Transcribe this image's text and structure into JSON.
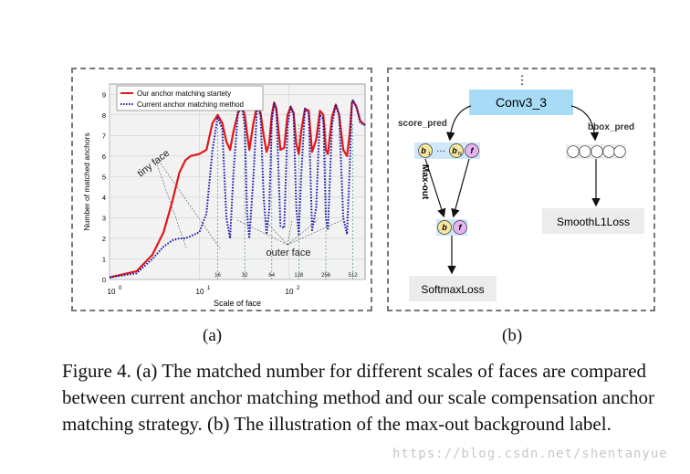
{
  "chart_data": {
    "type": "line",
    "xlabel": "Scale of face",
    "ylabel": "Number of matched anchors",
    "xscale": "log",
    "xlim": [
      1,
      700
    ],
    "ylim": [
      0,
      9.5
    ],
    "x_tick_labels": [
      "10",
      "10",
      "10"
    ],
    "x_tick_exponents": [
      "0",
      "1",
      "2"
    ],
    "y_ticks": [
      "0",
      "1",
      "2",
      "3",
      "4",
      "5",
      "6",
      "7",
      "8",
      "9"
    ],
    "anchor_scales": [
      "16",
      "32",
      "64",
      "128",
      "256",
      "512"
    ],
    "grid": true,
    "legend_position": "top",
    "annotations": [
      "tiny face",
      "outer face"
    ],
    "series": [
      {
        "name": "Our anchor matching startety",
        "color": "#e01818",
        "style": "solid",
        "x": [
          1,
          2,
          3,
          4,
          5,
          6,
          7,
          8,
          10,
          12,
          14,
          16,
          18,
          20,
          22,
          24,
          27,
          30,
          32,
          34,
          36,
          40,
          44,
          48,
          52,
          56,
          60,
          64,
          68,
          72,
          80,
          88,
          96,
          104,
          112,
          120,
          128,
          136,
          150,
          165,
          180,
          200,
          220,
          240,
          256,
          270,
          300,
          330,
          360,
          400,
          440,
          470,
          500,
          512,
          560,
          620,
          700
        ],
        "y": [
          0.1,
          0.4,
          1.2,
          2.3,
          3.8,
          5.2,
          5.8,
          6.0,
          6.1,
          6.3,
          7.6,
          8.0,
          7.6,
          6.7,
          6.3,
          7.2,
          8.1,
          8.4,
          8.0,
          7.1,
          6.3,
          7.6,
          8.5,
          8.1,
          7.0,
          6.2,
          6.6,
          8.0,
          8.6,
          8.3,
          6.3,
          6.4,
          8.0,
          8.4,
          8.1,
          6.6,
          6.1,
          7.2,
          8.3,
          8.2,
          6.2,
          6.8,
          8.2,
          8.0,
          6.3,
          6.1,
          7.9,
          8.5,
          8.0,
          6.3,
          6.0,
          7.0,
          8.6,
          8.7,
          8.4,
          7.7,
          7.5
        ]
      },
      {
        "name": "Current anchor matching method",
        "color": "#1a1aa8",
        "style": "dotted",
        "x": [
          1,
          2,
          3,
          4,
          5,
          6,
          7,
          8,
          10,
          12,
          14,
          16,
          18,
          20,
          22,
          24,
          27,
          30,
          32,
          34,
          36,
          40,
          44,
          48,
          52,
          56,
          60,
          64,
          68,
          72,
          80,
          88,
          96,
          104,
          112,
          120,
          128,
          136,
          150,
          165,
          180,
          200,
          220,
          240,
          256,
          270,
          300,
          330,
          360,
          400,
          440,
          470,
          500,
          512,
          560,
          620,
          700
        ],
        "y": [
          0.1,
          0.3,
          1.0,
          1.6,
          1.9,
          2.0,
          2.0,
          2.1,
          2.3,
          3.2,
          6.3,
          7.9,
          7.3,
          3.0,
          2.0,
          5.2,
          8.2,
          8.3,
          7.5,
          3.2,
          2.0,
          5.0,
          8.4,
          8.0,
          4.0,
          2.2,
          3.4,
          7.6,
          8.6,
          8.2,
          2.6,
          2.5,
          7.5,
          8.4,
          8.0,
          3.5,
          2.2,
          5.0,
          8.3,
          8.1,
          2.4,
          3.5,
          8.0,
          7.8,
          3.0,
          2.4,
          7.5,
          8.5,
          8.0,
          3.0,
          2.2,
          5.2,
          8.6,
          8.7,
          8.4,
          7.6,
          7.5
        ]
      }
    ]
  },
  "diagram": {
    "top_dots": "⋮",
    "conv_label": "Conv3_3",
    "score_pred": "score_pred",
    "bbox_pred": "bbox_pred",
    "score_cells": {
      "b1": "b",
      "b1_sub": "1",
      "dots": "···",
      "bN": "b",
      "bN_sub": "N",
      "f": "f"
    },
    "maxout_label": "Max-out",
    "result_cells": {
      "b": "b",
      "f": "f"
    },
    "softmax_label": "SoftmaxLoss",
    "smoothl1_label": "SmoothL1Loss",
    "colors": {
      "conv_fill": "#a8dcf6",
      "score_fill": "#cfe7f8",
      "cell_b": "#f6e7a0",
      "cell_f": "#e6b4f0",
      "loss_fill": "#ececec"
    }
  },
  "sublabel_a": "(a)",
  "sublabel_b": "(b)",
  "caption": "Figure 4. (a) The matched number for different scales of faces are compared between current anchor matching method and our scale compensation anchor matching strategy. (b) The illustration of the max-out background label.",
  "watermark": "https://blog.csdn.net/shentanyue"
}
